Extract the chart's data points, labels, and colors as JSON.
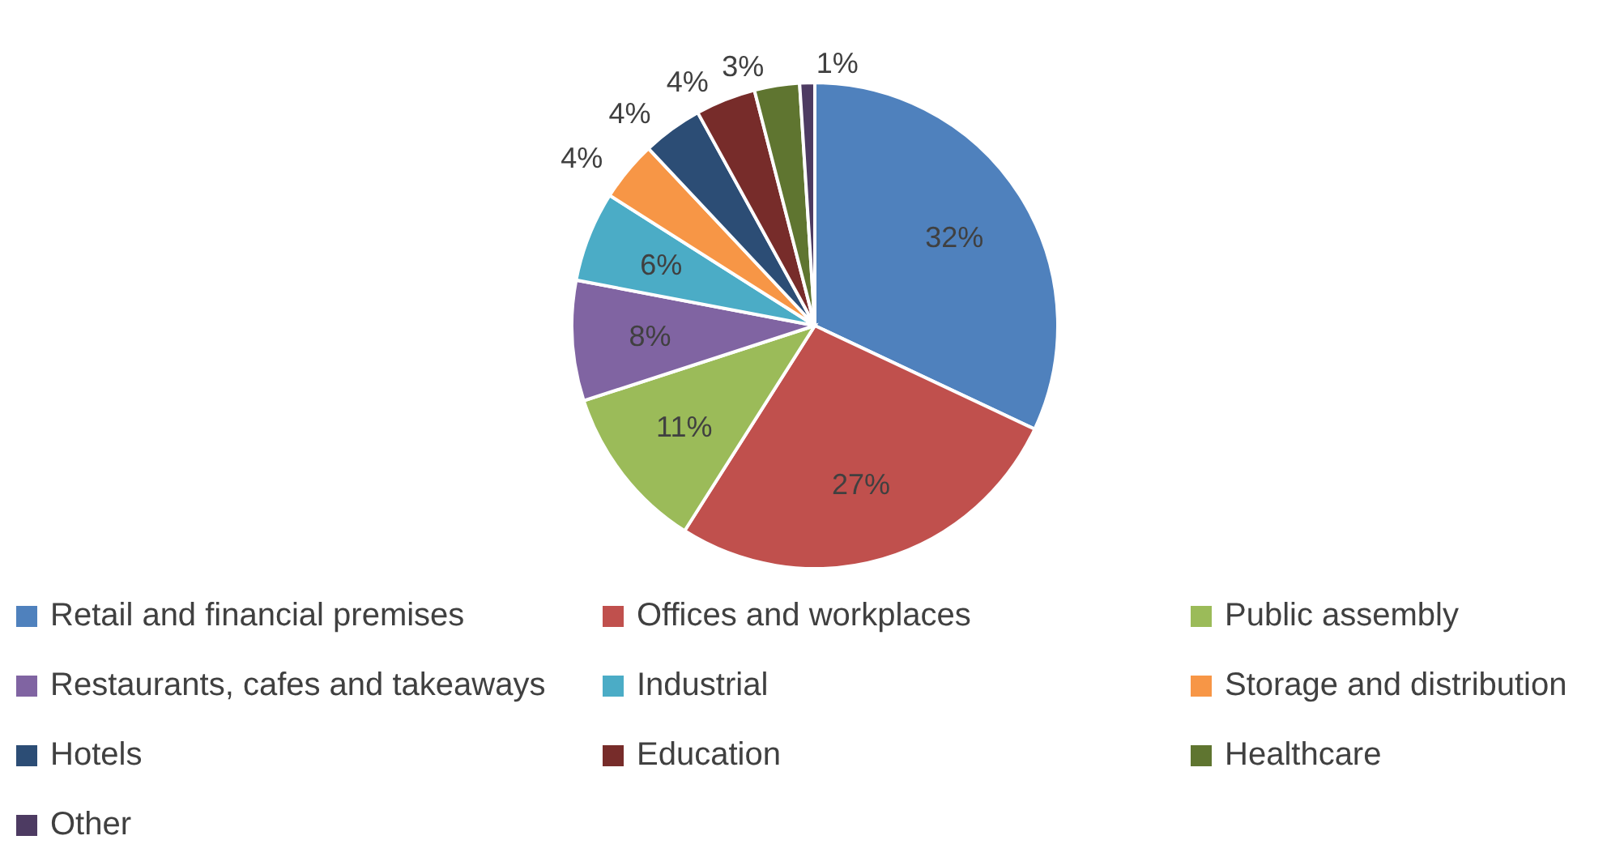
{
  "chart_data": {
    "type": "pie",
    "categories": [
      "Retail and financial premises",
      "Offices and workplaces",
      "Public assembly",
      "Restaurants, cafes and takeaways",
      "Industrial",
      "Storage and distribution",
      "Hotels",
      "Education",
      "Healthcare",
      "Other"
    ],
    "values": [
      32,
      27,
      11,
      8,
      6,
      4,
      4,
      4,
      3,
      1
    ],
    "colors": [
      "#4f81bd",
      "#c0504d",
      "#9bbb59",
      "#8064a2",
      "#4bacc6",
      "#f79646",
      "#2c4d75",
      "#772c2a",
      "#5f7530",
      "#4d3b62"
    ],
    "value_labels": [
      "32%",
      "27%",
      "11%",
      "8%",
      "6%",
      "4%",
      "4%",
      "4%",
      "3%",
      "1%"
    ],
    "legend": "bottom"
  }
}
